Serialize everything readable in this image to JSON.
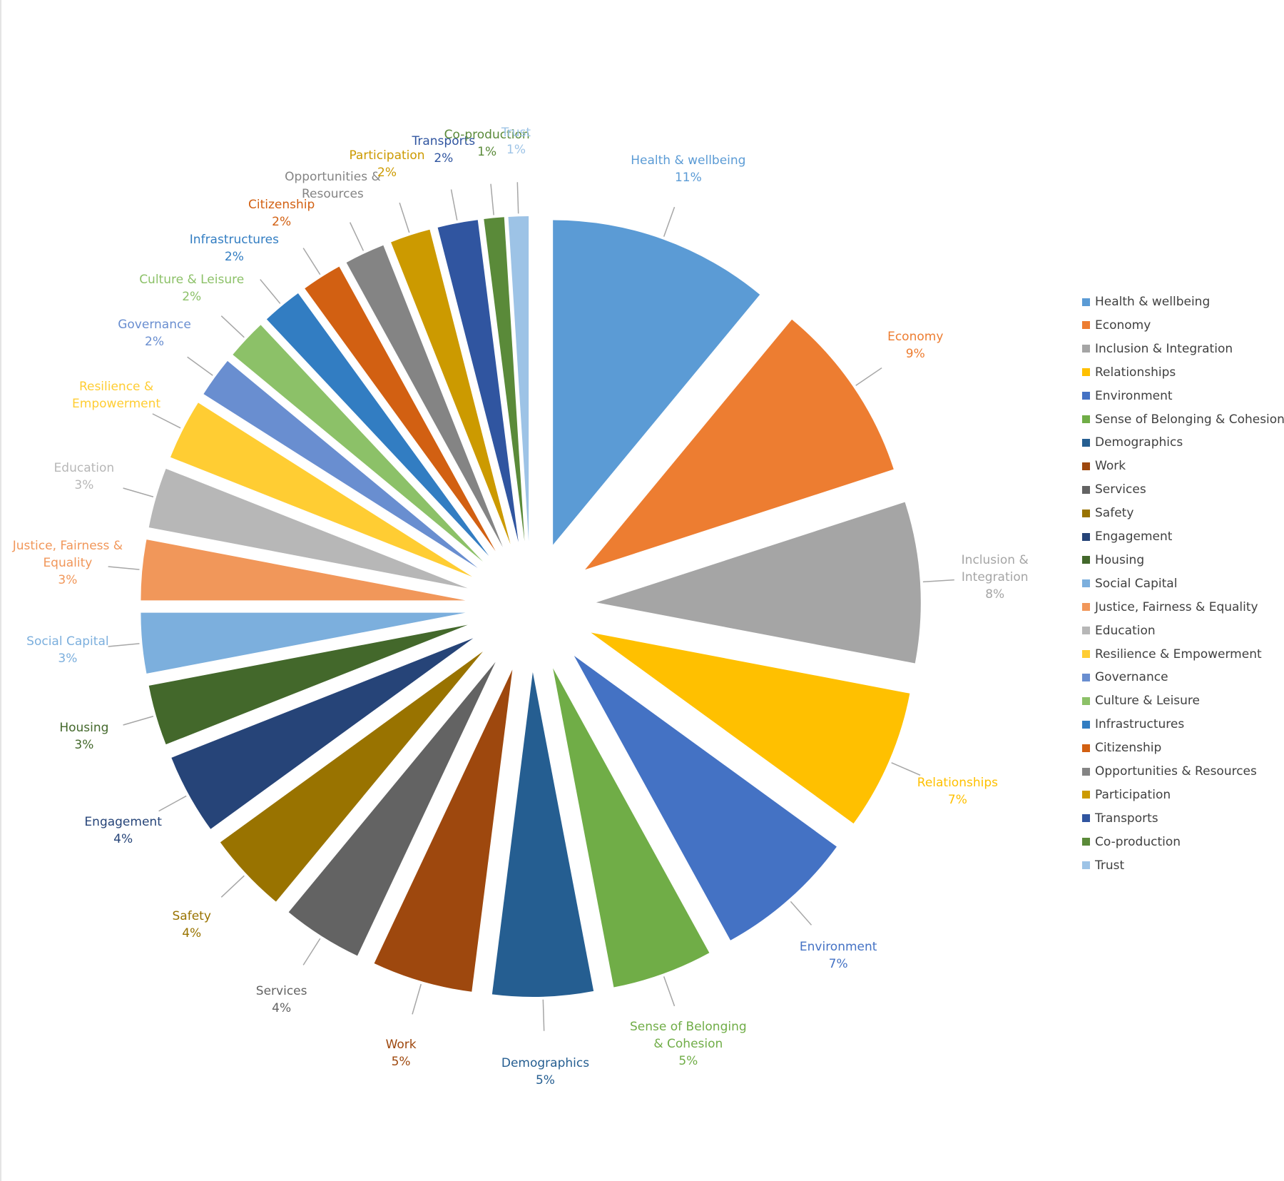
{
  "chart_data": {
    "type": "pie",
    "categories": [
      "Health & wellbeing",
      "Economy",
      "Inclusion & Integration",
      "Relationships",
      "Environment",
      "Sense of Belonging & Cohesion",
      "Demographics",
      "Work",
      "Services",
      "Safety",
      "Engagement",
      "Housing",
      "Social Capital",
      "Justice, Fairness & Equality",
      "Education",
      "Resilience & Empowerment",
      "Governance",
      "Culture & Leisure",
      "Infrastructures",
      "Citizenship",
      "Opportunities & Resources",
      "Participation",
      "Transports",
      "Co-production",
      "Trust"
    ],
    "values": [
      11,
      9,
      8,
      7,
      7,
      5,
      5,
      5,
      4,
      4,
      4,
      3,
      3,
      3,
      3,
      3,
      2,
      2,
      2,
      2,
      2,
      2,
      2,
      1,
      1
    ],
    "value_labels": [
      "11%",
      "9%",
      "8%",
      "7%",
      "7%",
      "5%",
      "5%",
      "5%",
      "4%",
      "4%",
      "4%",
      "3%",
      "3%",
      "3%",
      "3%",
      null,
      "2%",
      "2%",
      "2%",
      "2%",
      null,
      "2%",
      "2%",
      "1%",
      "1%"
    ],
    "colors": [
      "#5b9bd5",
      "#ed7d31",
      "#a5a5a5",
      "#ffc000",
      "#4472c4",
      "#70ad47",
      "#255e91",
      "#9e480e",
      "#636363",
      "#997300",
      "#264478",
      "#43682b",
      "#7cafdd",
      "#f1975a",
      "#b7b7b7",
      "#ffcd33",
      "#698ed0",
      "#8cc168",
      "#327dc2",
      "#d26012",
      "#848484",
      "#cc9a00",
      "#3055a0",
      "#5a8a39",
      "#9dc3e6"
    ],
    "legend": "right"
  }
}
